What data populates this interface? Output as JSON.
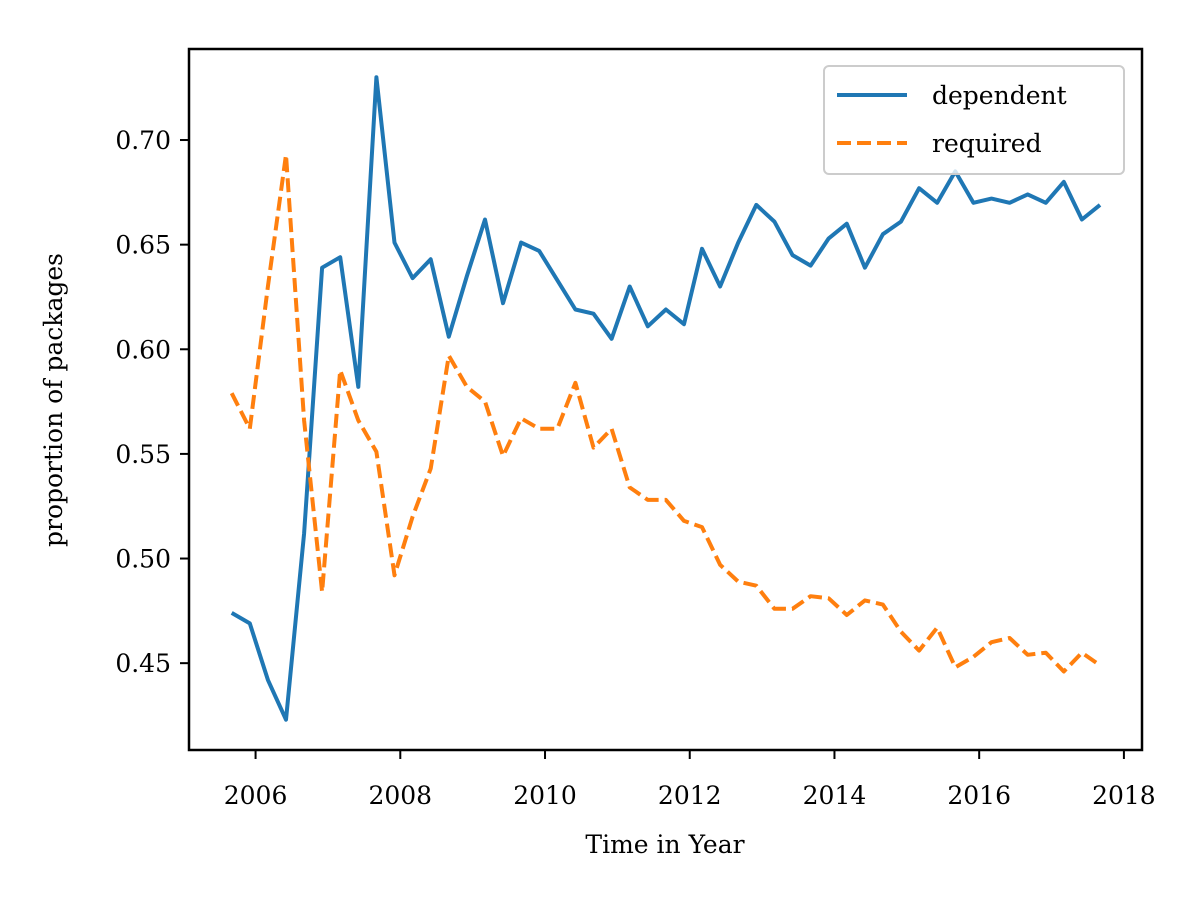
{
  "chart_data": {
    "type": "line",
    "title": "",
    "xlabel": "Time in Year",
    "ylabel": "proportion of packages",
    "xlim": [
      2005.08,
      2018.25
    ],
    "ylim": [
      0.4085,
      0.7435
    ],
    "xticks": [
      2006,
      2008,
      2010,
      2012,
      2014,
      2016,
      2018
    ],
    "xtick_labels": [
      "2006",
      "2008",
      "2010",
      "2012",
      "2014",
      "2016",
      "2018"
    ],
    "yticks": [
      0.45,
      0.5,
      0.55,
      0.6,
      0.65,
      0.7
    ],
    "ytick_labels": [
      "0.45",
      "0.50",
      "0.55",
      "0.60",
      "0.65",
      "0.70"
    ],
    "grid": false,
    "legend_position": "top-right",
    "x": [
      2005.67,
      2005.92,
      2006.17,
      2006.42,
      2006.67,
      2006.92,
      2007.17,
      2007.42,
      2007.67,
      2007.92,
      2008.17,
      2008.42,
      2008.67,
      2008.92,
      2009.17,
      2009.42,
      2009.67,
      2009.92,
      2010.17,
      2010.42,
      2010.67,
      2010.92,
      2011.17,
      2011.42,
      2011.67,
      2011.92,
      2012.17,
      2012.42,
      2012.67,
      2012.92,
      2013.17,
      2013.42,
      2013.67,
      2013.92,
      2014.17,
      2014.42,
      2014.67,
      2014.92,
      2015.17,
      2015.42,
      2015.67,
      2015.92,
      2016.17,
      2016.42,
      2016.67,
      2016.92,
      2017.17,
      2017.42,
      2017.67
    ],
    "series": [
      {
        "name": "dependent",
        "color": "#1f77b4",
        "style": "solid",
        "values": [
          0.474,
          0.469,
          0.442,
          0.423,
          0.512,
          0.639,
          0.644,
          0.582,
          0.73,
          0.651,
          0.634,
          0.643,
          0.606,
          0.635,
          0.662,
          0.622,
          0.651,
          0.647,
          0.633,
          0.619,
          0.617,
          0.605,
          0.63,
          0.611,
          0.619,
          0.612,
          0.648,
          0.63,
          0.651,
          0.669,
          0.661,
          0.645,
          0.64,
          0.653,
          0.66,
          0.639,
          0.655,
          0.661,
          0.677,
          0.67,
          0.685,
          0.67,
          0.672,
          0.67,
          0.674,
          0.67,
          0.68,
          0.662,
          0.669
        ]
      },
      {
        "name": "required",
        "color": "#ff7f0e",
        "style": "dashed",
        "values": [
          0.579,
          0.562,
          0.63,
          0.693,
          0.566,
          0.484,
          0.59,
          0.566,
          0.551,
          0.492,
          0.52,
          0.543,
          0.597,
          0.582,
          0.575,
          0.549,
          0.567,
          0.562,
          0.562,
          0.584,
          0.553,
          0.562,
          0.534,
          0.528,
          0.528,
          0.518,
          0.515,
          0.497,
          0.489,
          0.487,
          0.476,
          0.476,
          0.482,
          0.481,
          0.473,
          0.48,
          0.478,
          0.465,
          0.456,
          0.467,
          0.448,
          0.453,
          0.46,
          0.462,
          0.454,
          0.455,
          0.446,
          0.455,
          0.449
        ]
      }
    ]
  }
}
